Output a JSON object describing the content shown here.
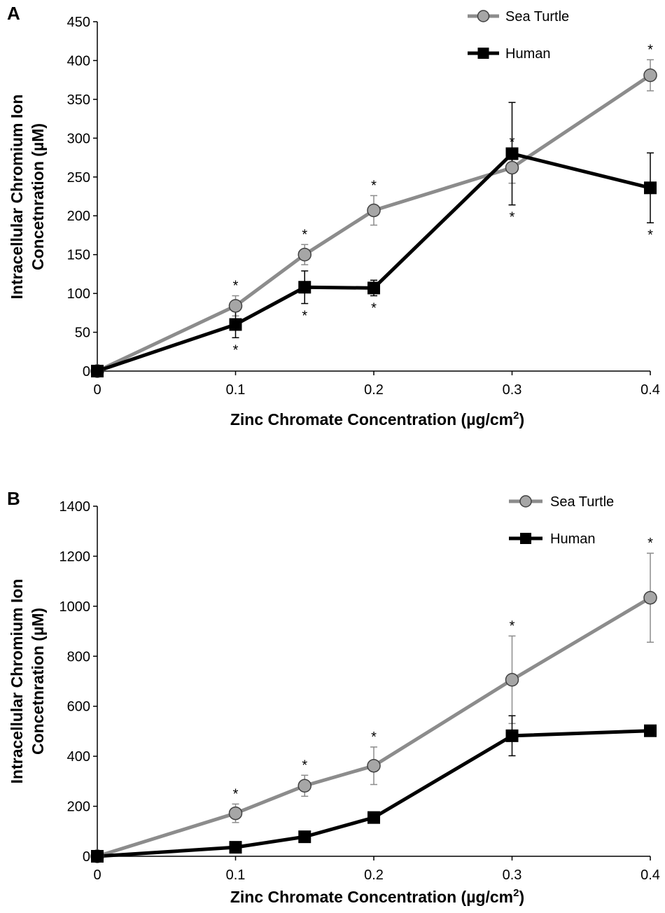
{
  "chart_data": [
    {
      "panel_label": "A",
      "type": "line",
      "xlabel_main": "Zinc Chromate Concentration (µg/cm",
      "xlabel_sup": "2",
      "xlabel_end": ")",
      "ylabel_line1": "Intracellular Chromium Ion",
      "ylabel_line2": "Concetnration (µM)",
      "xlim": [
        0,
        0.4
      ],
      "ylim": [
        0,
        450
      ],
      "x_ticks": [
        0,
        0.1,
        0.2,
        0.3,
        0.4
      ],
      "y_ticks": [
        0,
        50,
        100,
        150,
        200,
        250,
        300,
        350,
        400,
        450
      ],
      "legend_position": "top-right",
      "grid": false,
      "series": [
        {
          "name": "Sea Turtle",
          "color": "#8c8c8c",
          "marker": "circle",
          "x": [
            0,
            0.1,
            0.15,
            0.2,
            0.3,
            0.4
          ],
          "y": [
            0,
            84,
            150,
            207,
            262,
            381
          ],
          "err": [
            0,
            13,
            13,
            19,
            20,
            20
          ],
          "sig": [
            false,
            true,
            true,
            true,
            true,
            true
          ]
        },
        {
          "name": "Human",
          "color": "#000000",
          "marker": "square",
          "x": [
            0,
            0.1,
            0.15,
            0.2,
            0.3,
            0.4
          ],
          "y": [
            0,
            60,
            108,
            107,
            280,
            236
          ],
          "err": [
            0,
            17,
            21,
            10,
            66,
            45
          ],
          "sig": [
            false,
            true,
            true,
            true,
            true,
            true
          ]
        }
      ],
      "sig_marker": "*"
    },
    {
      "panel_label": "B",
      "type": "line",
      "xlabel_main": "Zinc Chromate Concentration (µg/cm",
      "xlabel_sup": "2",
      "xlabel_end": ")",
      "ylabel_line1": "Intracellular Chromium Ion",
      "ylabel_line2": "Concetnration (µM)",
      "xlim": [
        0,
        0.4
      ],
      "ylim": [
        0,
        1400
      ],
      "x_ticks": [
        0,
        0.1,
        0.2,
        0.3,
        0.4
      ],
      "y_ticks": [
        0,
        200,
        400,
        600,
        800,
        1000,
        1200,
        1400
      ],
      "legend_position": "top-right",
      "grid": false,
      "series": [
        {
          "name": "Sea Turtle",
          "color": "#8c8c8c",
          "marker": "circle",
          "x": [
            0,
            0.1,
            0.15,
            0.2,
            0.3,
            0.4
          ],
          "y": [
            0,
            172,
            282,
            362,
            706,
            1034
          ],
          "err": [
            0,
            37,
            42,
            75,
            175,
            178
          ],
          "sig": [
            false,
            true,
            true,
            true,
            true,
            true
          ]
        },
        {
          "name": "Human",
          "color": "#000000",
          "marker": "square",
          "x": [
            0,
            0.1,
            0.15,
            0.2,
            0.3,
            0.4
          ],
          "y": [
            0,
            36,
            78,
            155,
            482,
            502
          ],
          "err": [
            0,
            0,
            0,
            0,
            80,
            0
          ],
          "sig": [
            false,
            false,
            false,
            false,
            false,
            false
          ]
        }
      ],
      "sig_marker": "*"
    }
  ]
}
